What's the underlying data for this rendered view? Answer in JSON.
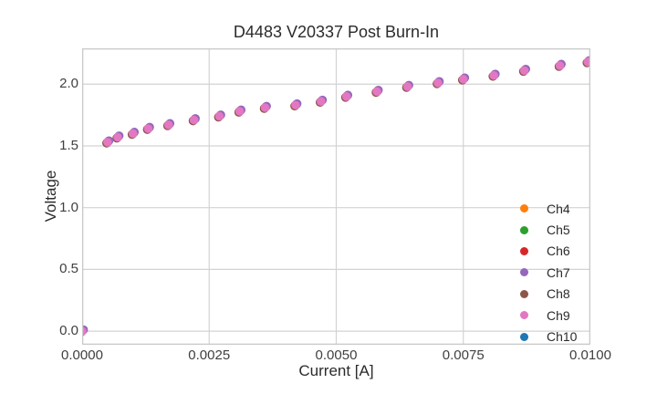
{
  "figure": {
    "background": "#ffffff",
    "grid_color": "#d3d3d3",
    "spine_color": "#c9c9c9",
    "text_color": "#2b2b2b",
    "tick_text_color": "#404040"
  },
  "chart_data": {
    "type": "scatter",
    "title": "D4483 V20337 Post Burn-In",
    "xlabel": "Current [A]",
    "ylabel": "Voltage",
    "xlim": [
      0.0,
      0.01
    ],
    "ylim": [
      -0.11,
      2.29
    ],
    "x_ticks": [
      0.0,
      0.0025,
      0.005,
      0.0075,
      0.01
    ],
    "x_tick_labels": [
      "0.0000",
      "0.0025",
      "0.0050",
      "0.0075",
      "0.0100"
    ],
    "y_ticks": [
      0.0,
      0.5,
      1.0,
      1.5,
      2.0
    ],
    "y_tick_labels": [
      "0.0",
      "0.5",
      "1.0",
      "1.5",
      "2.0"
    ],
    "grid": true,
    "legend_position": "lower right inside, frameless",
    "marker": "circle",
    "marker_diameter_px": 9.6,
    "x": [
      0.0,
      0.0005,
      0.0007,
      0.001,
      0.0013,
      0.0017,
      0.0022,
      0.0027,
      0.0031,
      0.0036,
      0.0042,
      0.0047,
      0.0052,
      0.0058,
      0.0064,
      0.007,
      0.0075,
      0.0081,
      0.0087,
      0.0094,
      0.00995
    ],
    "series": [
      {
        "name": "Ch4",
        "color": "#ff7f0e",
        "values": [
          0.0,
          1.53,
          1.57,
          1.6,
          1.64,
          1.67,
          1.71,
          1.74,
          1.78,
          1.81,
          1.83,
          1.86,
          1.9,
          1.94,
          1.98,
          2.01,
          2.04,
          2.07,
          2.11,
          2.15,
          2.18
        ]
      },
      {
        "name": "Ch5",
        "color": "#2ca02c",
        "values": [
          0.0,
          1.53,
          1.57,
          1.6,
          1.64,
          1.67,
          1.71,
          1.74,
          1.78,
          1.81,
          1.83,
          1.86,
          1.9,
          1.94,
          1.98,
          2.01,
          2.04,
          2.07,
          2.11,
          2.15,
          2.18
        ]
      },
      {
        "name": "Ch6",
        "color": "#d62728",
        "values": [
          0.0,
          1.53,
          1.57,
          1.6,
          1.64,
          1.67,
          1.71,
          1.74,
          1.78,
          1.81,
          1.83,
          1.86,
          1.9,
          1.94,
          1.98,
          2.01,
          2.04,
          2.07,
          2.11,
          2.15,
          2.18
        ]
      },
      {
        "name": "Ch7",
        "color": "#9467bd",
        "values": [
          0.0,
          1.53,
          1.57,
          1.6,
          1.64,
          1.67,
          1.71,
          1.74,
          1.78,
          1.81,
          1.83,
          1.86,
          1.9,
          1.94,
          1.98,
          2.01,
          2.04,
          2.07,
          2.11,
          2.15,
          2.18
        ]
      },
      {
        "name": "Ch8",
        "color": "#8c564b",
        "values": [
          0.0,
          1.53,
          1.57,
          1.6,
          1.64,
          1.67,
          1.71,
          1.74,
          1.78,
          1.81,
          1.83,
          1.86,
          1.9,
          1.94,
          1.98,
          2.01,
          2.04,
          2.07,
          2.11,
          2.15,
          2.18
        ]
      },
      {
        "name": "Ch9",
        "color": "#e377c2",
        "values": [
          0.0,
          1.53,
          1.57,
          1.6,
          1.64,
          1.67,
          1.71,
          1.74,
          1.78,
          1.81,
          1.83,
          1.86,
          1.9,
          1.94,
          1.98,
          2.01,
          2.04,
          2.07,
          2.11,
          2.15,
          2.18
        ]
      },
      {
        "name": "Ch10",
        "color": "#1f77b4",
        "values": [
          0.0,
          1.53,
          1.57,
          1.6,
          1.64,
          1.67,
          1.71,
          1.74,
          1.78,
          1.81,
          1.83,
          1.86,
          1.9,
          1.94,
          1.98,
          2.01,
          2.04,
          2.07,
          2.11,
          2.15,
          2.18
        ]
      }
    ],
    "note": "All seven channel curves overlap almost exactly; Ch9 (pink) is drawn on top with Ch7 (purple) peeking out up-right."
  }
}
